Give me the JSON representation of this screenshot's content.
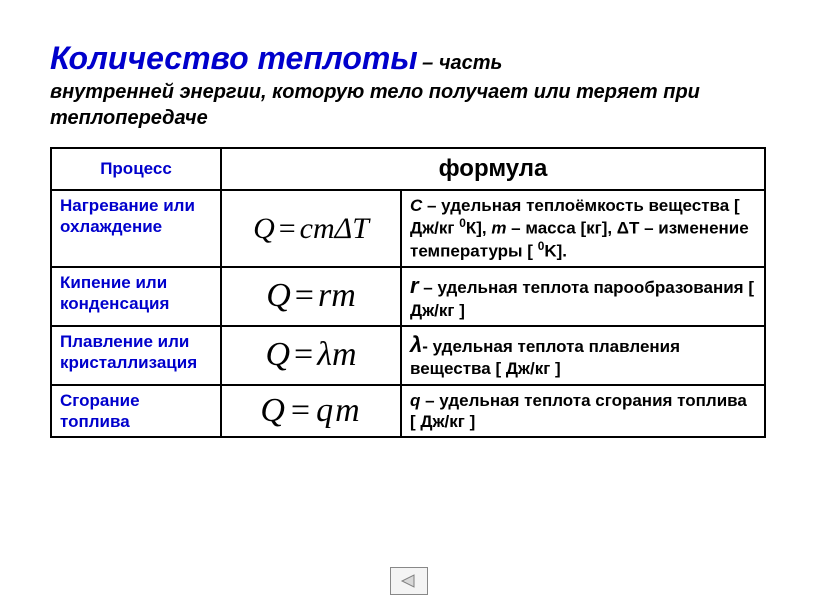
{
  "title": {
    "main": "Количество теплоты",
    "connector": " – часть",
    "line2": "внутренней энергии, которую тело получает или теряет при теплопередаче"
  },
  "table": {
    "headers": {
      "process": "Процесс",
      "formula": "формула"
    },
    "rows": [
      {
        "process": "Нагревание или охлаждение",
        "formula_html": "<span class='formula-text'><i>Q</i><span class='eq'>=</span><i>cm</i>Δ<i>T</i></span>",
        "desc_html": "<span class='sym'>C</span> – удельная теплоёмкость вещества [ Дж/кг <sup>0</sup>К], <span class='sym'>m</span> – масса [кг],  ΔТ – изменение температуры [ <sup>0</sup>K]."
      },
      {
        "process": "Кипение или конденсация",
        "formula_html": "<span class='formula-text-lg'><i>Q</i><span class='eq'>=</span><i>rm</i></span>",
        "desc_html": "<span class='sym-big'>r</span> – удельная теплота парообразования [ Дж/кг ]"
      },
      {
        "process": "Плавление или кристаллизация",
        "formula_html": "<span class='formula-text-lg'><i>Q</i><span class='eq'>=</span>λ<i>m</i></span>",
        "desc_html": "<span class='sym-big'>λ</span>- удельная теплота плавления вещества [ Дж/кг ]"
      },
      {
        "process": "Сгорание топлива",
        "formula_html": "<span class='formula-text-lg' style='letter-spacing:2px'><i>Q</i><span class='eq'>=</span><i>qm</i></span>",
        "desc_html": "<span class='sym'>q</span> – удельная теплота сгорания топлива [ Дж/кг ]"
      }
    ]
  },
  "colors": {
    "accent": "#0000cc",
    "text": "#000000",
    "border": "#000000",
    "background": "#ffffff"
  }
}
